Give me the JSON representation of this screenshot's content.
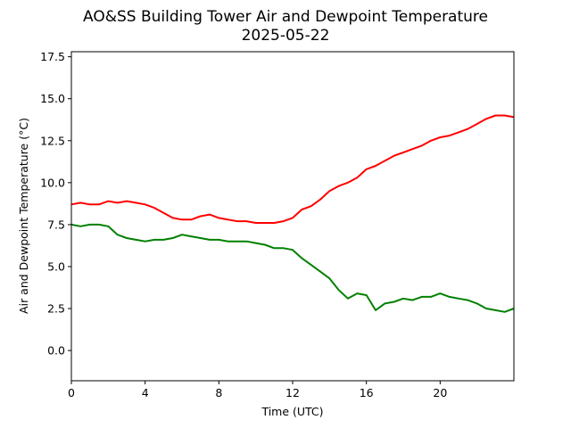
{
  "chart_data": {
    "type": "line",
    "title": "AO&SS Building Tower Air and Dewpoint Temperature",
    "subtitle": "2025-05-22",
    "xlabel": "Time (UTC)",
    "ylabel": "Air and Dewpoint Temperature (°C)",
    "xlim": [
      0,
      24
    ],
    "ylim": [
      -1.8,
      17.8
    ],
    "xticks": [
      0,
      4,
      8,
      12,
      16,
      20
    ],
    "xtick_labels": [
      "0",
      "4",
      "8",
      "12",
      "16",
      "20"
    ],
    "yticks": [
      0.0,
      2.5,
      5.0,
      7.5,
      10.0,
      12.5,
      15.0,
      17.5
    ],
    "ytick_labels": [
      "0.0",
      "2.5",
      "5.0",
      "7.5",
      "10.0",
      "12.5",
      "15.0",
      "17.5"
    ],
    "grid": false,
    "series": [
      {
        "color": "#ff0000",
        "x": [
          0,
          0.5,
          1,
          1.5,
          2,
          2.5,
          3,
          3.5,
          4,
          4.5,
          5,
          5.5,
          6,
          6.5,
          7,
          7.5,
          8,
          8.5,
          9,
          9.5,
          10,
          10.5,
          11,
          11.5,
          12,
          12.5,
          13,
          13.5,
          14,
          14.5,
          15,
          15.5,
          16,
          16.5,
          17,
          17.5,
          18,
          18.5,
          19,
          19.5,
          20,
          20.5,
          21,
          21.5,
          22,
          22.5,
          23,
          23.5,
          24
        ],
        "y": [
          8.7,
          8.8,
          8.7,
          8.7,
          8.9,
          8.8,
          8.9,
          8.8,
          8.7,
          8.5,
          8.2,
          7.9,
          7.8,
          7.8,
          8.0,
          8.1,
          7.9,
          7.8,
          7.7,
          7.7,
          7.6,
          7.6,
          7.6,
          7.7,
          7.9,
          8.4,
          8.6,
          9.0,
          9.5,
          9.8,
          10.0,
          10.3,
          10.8,
          11.0,
          11.3,
          11.6,
          11.8,
          12.0,
          12.2,
          12.5,
          12.7,
          12.8,
          13.0,
          13.2,
          13.5,
          13.8,
          14.0,
          14.0,
          13.9
        ]
      },
      {
        "color": "#008000",
        "x": [
          0,
          0.5,
          1,
          1.5,
          2,
          2.5,
          3,
          3.5,
          4,
          4.5,
          5,
          5.5,
          6,
          6.5,
          7,
          7.5,
          8,
          8.5,
          9,
          9.5,
          10,
          10.5,
          11,
          11.5,
          12,
          12.5,
          13,
          13.5,
          14,
          14.5,
          15,
          15.5,
          16,
          16.5,
          17,
          17.5,
          18,
          18.5,
          19,
          19.5,
          20,
          20.5,
          21,
          21.5,
          22,
          22.5,
          23,
          23.5,
          24
        ],
        "y": [
          7.5,
          7.4,
          7.5,
          7.5,
          7.4,
          6.9,
          6.7,
          6.6,
          6.5,
          6.6,
          6.6,
          6.7,
          6.9,
          6.8,
          6.7,
          6.6,
          6.6,
          6.5,
          6.5,
          6.5,
          6.4,
          6.3,
          6.1,
          6.1,
          6.0,
          5.5,
          5.1,
          4.7,
          4.3,
          3.6,
          3.1,
          3.4,
          3.3,
          2.4,
          2.8,
          2.9,
          3.1,
          3.0,
          3.2,
          3.2,
          3.4,
          3.2,
          3.1,
          3.0,
          2.8,
          2.5,
          2.4,
          2.3,
          2.5
        ]
      }
    ]
  }
}
